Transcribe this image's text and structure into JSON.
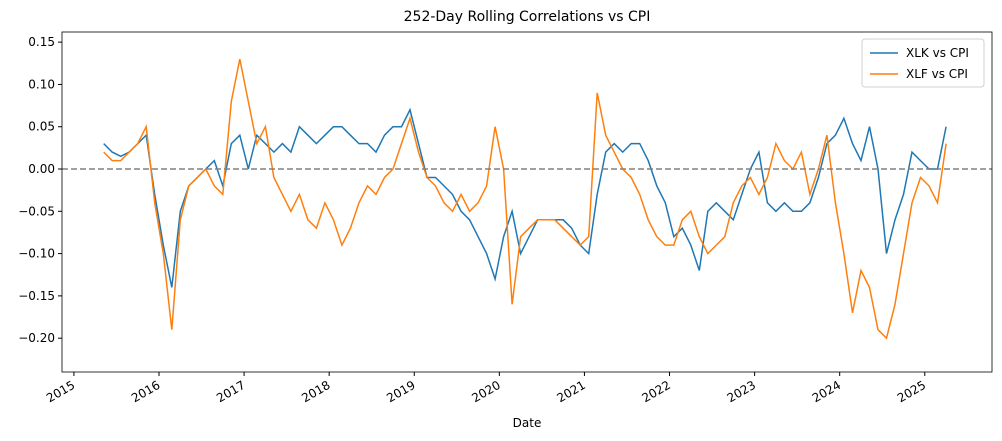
{
  "chart_data": {
    "type": "line",
    "title": "252-Day Rolling Correlations vs CPI",
    "xlabel": "Date",
    "x": [
      2015.35,
      2015.45,
      2015.55,
      2015.65,
      2015.75,
      2015.85,
      2015.95,
      2016.05,
      2016.15,
      2016.25,
      2016.35,
      2016.45,
      2016.55,
      2016.65,
      2016.75,
      2016.85,
      2016.95,
      2017.05,
      2017.15,
      2017.25,
      2017.35,
      2017.45,
      2017.55,
      2017.65,
      2017.75,
      2017.85,
      2017.95,
      2018.05,
      2018.15,
      2018.25,
      2018.35,
      2018.45,
      2018.55,
      2018.65,
      2018.75,
      2018.85,
      2018.95,
      2019.05,
      2019.15,
      2019.25,
      2019.35,
      2019.45,
      2019.55,
      2019.65,
      2019.75,
      2019.85,
      2019.95,
      2020.05,
      2020.15,
      2020.25,
      2020.35,
      2020.45,
      2020.55,
      2020.65,
      2020.75,
      2020.85,
      2020.95,
      2021.05,
      2021.15,
      2021.25,
      2021.35,
      2021.45,
      2021.55,
      2021.65,
      2021.75,
      2021.85,
      2021.95,
      2022.05,
      2022.15,
      2022.25,
      2022.35,
      2022.45,
      2022.55,
      2022.65,
      2022.75,
      2022.85,
      2022.95,
      2023.05,
      2023.15,
      2023.25,
      2023.35,
      2023.45,
      2023.55,
      2023.65,
      2023.75,
      2023.85,
      2023.95,
      2024.05,
      2024.15,
      2024.25,
      2024.35,
      2024.45,
      2024.55,
      2024.65,
      2024.75,
      2024.85,
      2024.95,
      2025.05,
      2025.15,
      2025.25
    ],
    "series": [
      {
        "name": "XLK vs CPI",
        "color": "#1f77b4",
        "values": [
          0.03,
          0.02,
          0.015,
          0.02,
          0.03,
          0.04,
          -0.03,
          -0.09,
          -0.14,
          -0.05,
          -0.02,
          -0.01,
          0.0,
          0.01,
          -0.02,
          0.03,
          0.04,
          0.0,
          0.04,
          0.03,
          0.02,
          0.03,
          0.02,
          0.05,
          0.04,
          0.03,
          0.04,
          0.05,
          0.05,
          0.04,
          0.03,
          0.03,
          0.02,
          0.04,
          0.05,
          0.05,
          0.07,
          0.03,
          -0.01,
          -0.01,
          -0.02,
          -0.03,
          -0.05,
          -0.06,
          -0.08,
          -0.1,
          -0.13,
          -0.08,
          -0.05,
          -0.1,
          -0.08,
          -0.06,
          -0.06,
          -0.06,
          -0.06,
          -0.07,
          -0.09,
          -0.1,
          -0.03,
          0.02,
          0.03,
          0.02,
          0.03,
          0.03,
          0.01,
          -0.02,
          -0.04,
          -0.08,
          -0.07,
          -0.09,
          -0.12,
          -0.05,
          -0.04,
          -0.05,
          -0.06,
          -0.03,
          0.0,
          0.02,
          -0.04,
          -0.05,
          -0.04,
          -0.05,
          -0.05,
          -0.04,
          -0.01,
          0.03,
          0.04,
          0.06,
          0.03,
          0.01,
          0.05,
          0.0,
          -0.1,
          -0.06,
          -0.03,
          0.02,
          0.01,
          0.0,
          0.0,
          0.05
        ]
      },
      {
        "name": "XLF vs CPI",
        "color": "#ff7f0e",
        "values": [
          0.02,
          0.01,
          0.01,
          0.02,
          0.03,
          0.05,
          -0.04,
          -0.1,
          -0.19,
          -0.06,
          -0.02,
          -0.01,
          0.0,
          -0.02,
          -0.03,
          0.08,
          0.13,
          0.08,
          0.03,
          0.05,
          -0.01,
          -0.03,
          -0.05,
          -0.03,
          -0.06,
          -0.07,
          -0.04,
          -0.06,
          -0.09,
          -0.07,
          -0.04,
          -0.02,
          -0.03,
          -0.01,
          0.0,
          0.03,
          0.06,
          0.02,
          -0.01,
          -0.02,
          -0.04,
          -0.05,
          -0.03,
          -0.05,
          -0.04,
          -0.02,
          0.05,
          0.0,
          -0.16,
          -0.08,
          -0.07,
          -0.06,
          -0.06,
          -0.06,
          -0.07,
          -0.08,
          -0.09,
          -0.08,
          0.09,
          0.04,
          0.02,
          0.0,
          -0.01,
          -0.03,
          -0.06,
          -0.08,
          -0.09,
          -0.09,
          -0.06,
          -0.05,
          -0.08,
          -0.1,
          -0.09,
          -0.08,
          -0.04,
          -0.02,
          -0.01,
          -0.03,
          -0.01,
          0.03,
          0.01,
          0.0,
          0.02,
          -0.03,
          0.0,
          0.04,
          -0.04,
          -0.1,
          -0.17,
          -0.12,
          -0.14,
          -0.19,
          -0.2,
          -0.16,
          -0.1,
          -0.04,
          -0.01,
          -0.02,
          -0.04,
          0.03
        ]
      }
    ],
    "xlim": [
      2014.86,
      2025.79
    ],
    "xticks": [
      2015,
      2016,
      2017,
      2018,
      2019,
      2020,
      2021,
      2022,
      2023,
      2024,
      2025
    ],
    "ylim": [
      -0.24,
      0.162
    ],
    "yticks": [
      {
        "value": -0.2,
        "label": "−0.20"
      },
      {
        "value": -0.15,
        "label": "−0.15"
      },
      {
        "value": -0.1,
        "label": "−0.10"
      },
      {
        "value": -0.05,
        "label": "−0.05"
      },
      {
        "value": 0,
        "label": "0.00"
      },
      {
        "value": 0.05,
        "label": "0.05"
      },
      {
        "value": 0.1,
        "label": "0.10"
      },
      {
        "value": 0.15,
        "label": "0.15"
      }
    ],
    "hline": 0,
    "hline_color": "#808080",
    "legend": "upper right"
  }
}
